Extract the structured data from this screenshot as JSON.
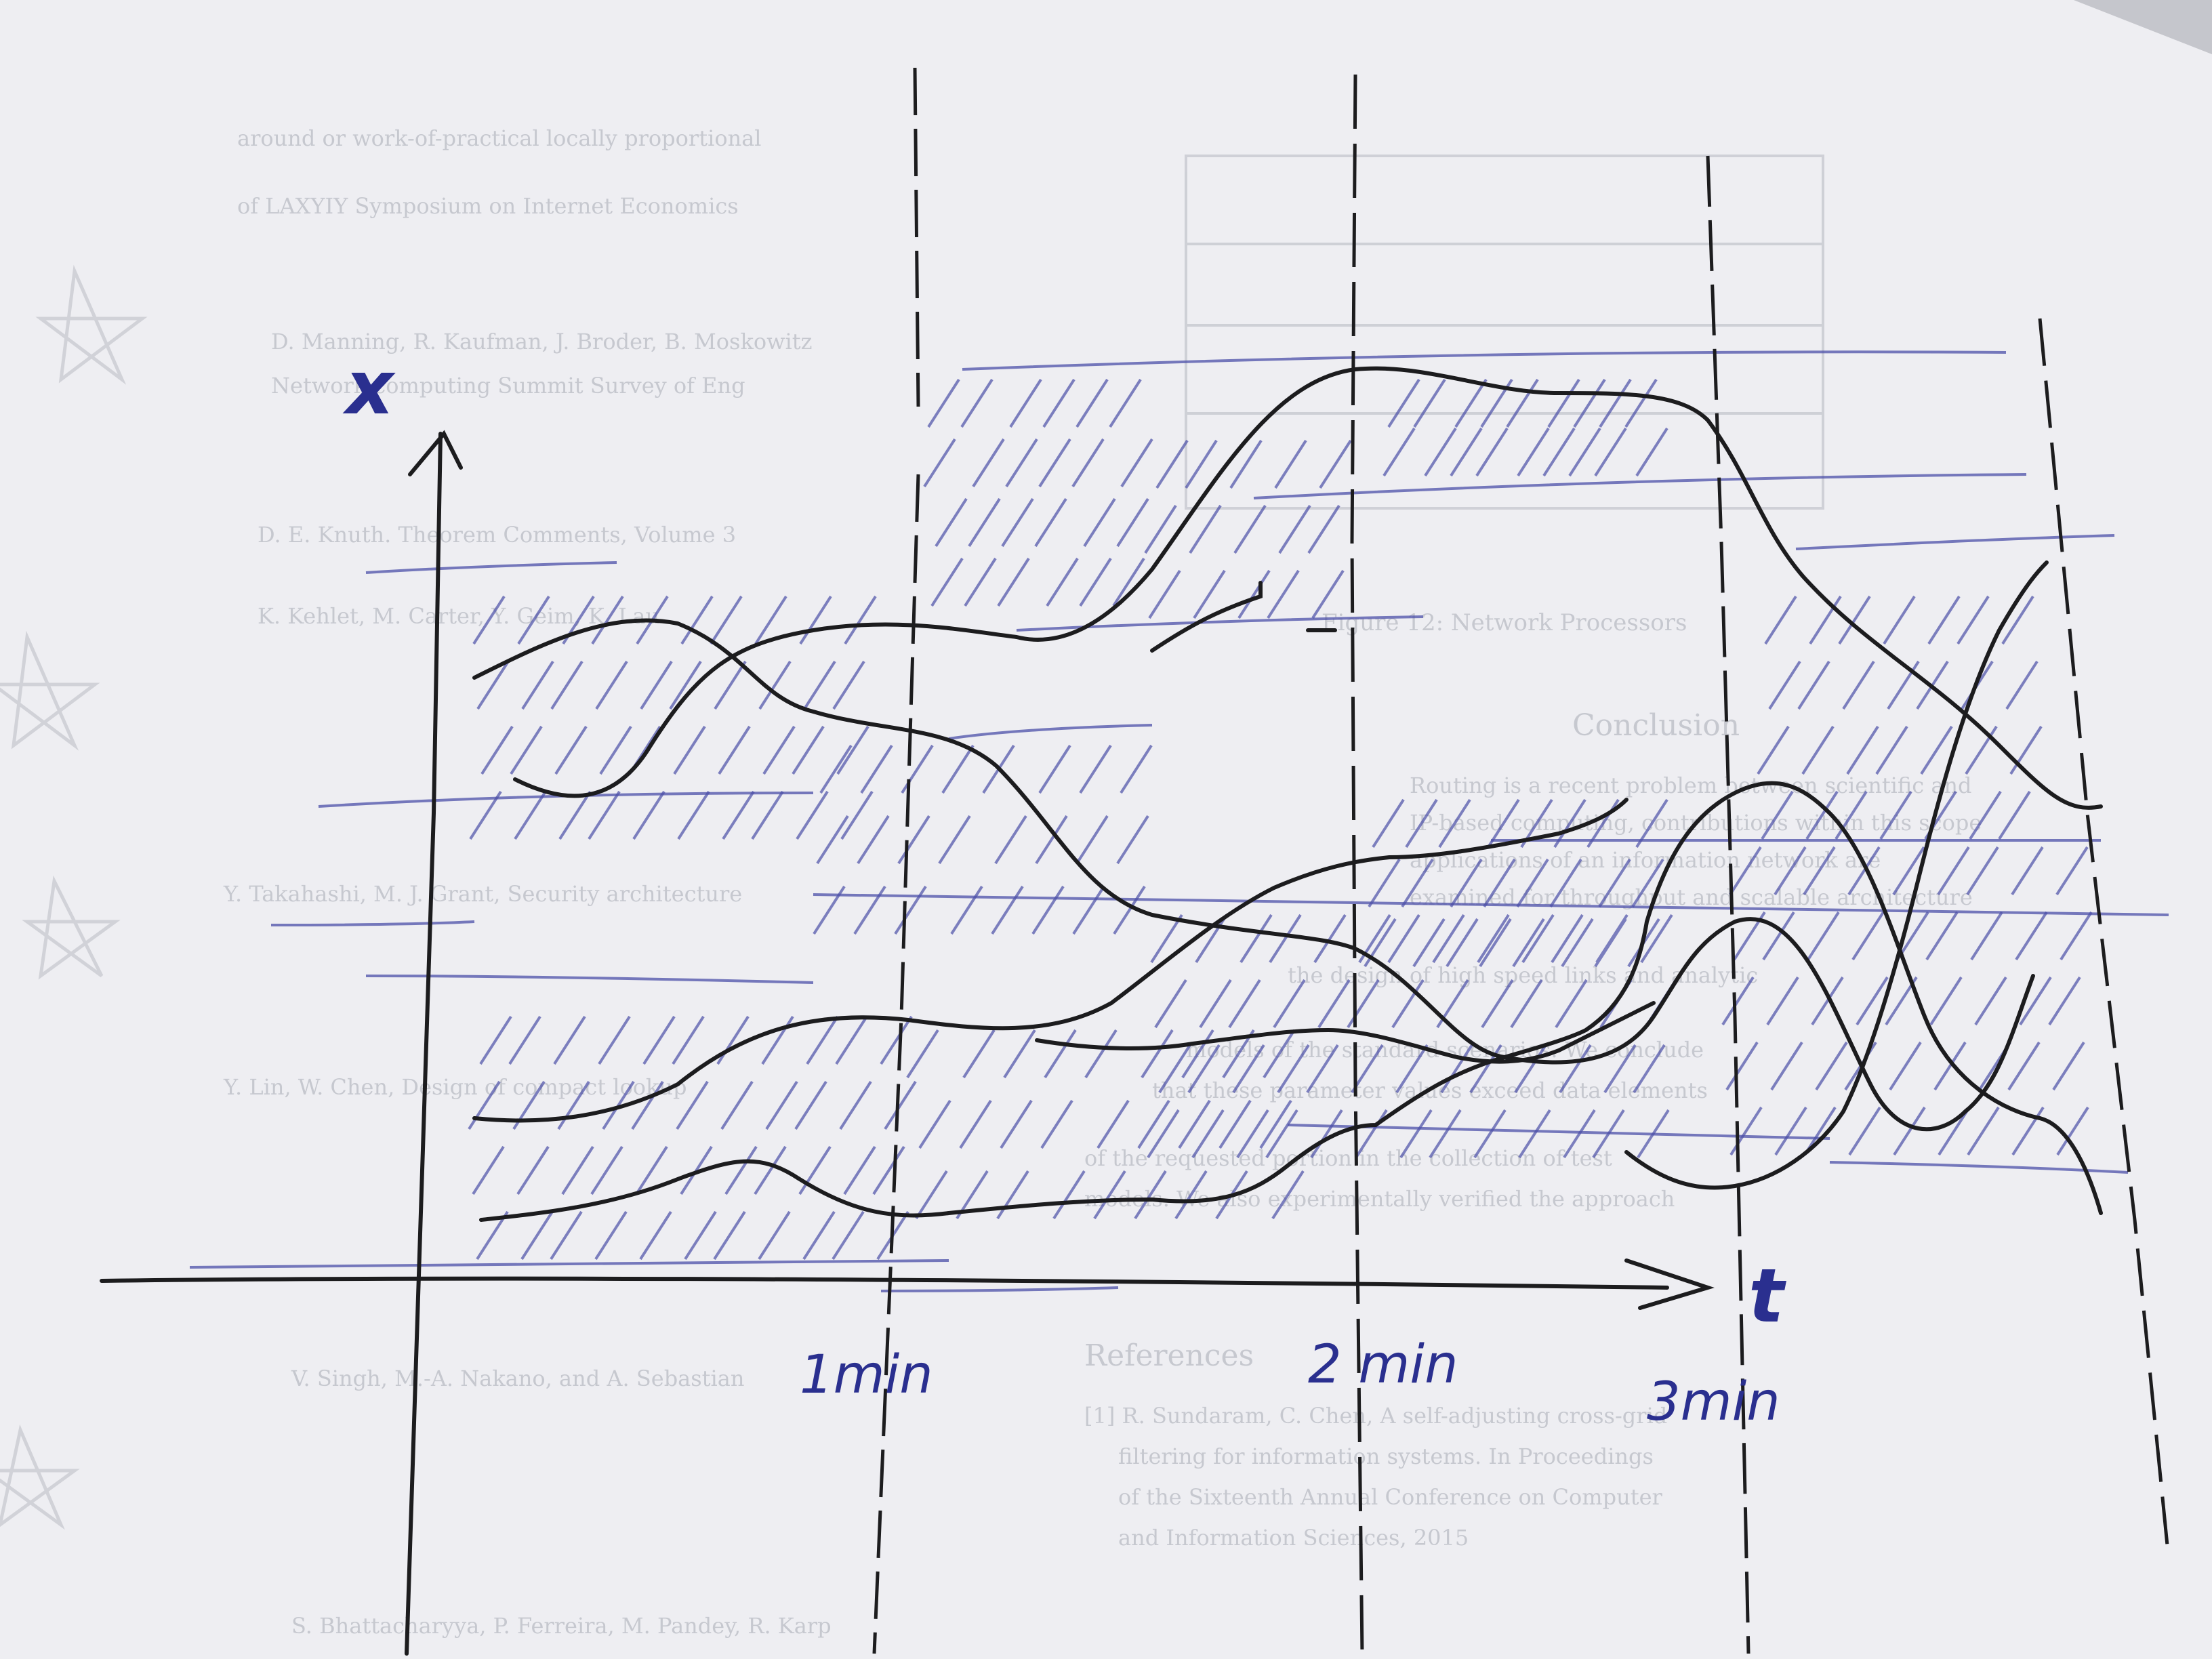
{
  "labels": {
    "x_axis": "x",
    "t_axis": "t",
    "tick_1": "1min",
    "tick_2": "2 min",
    "tick_3": "3min"
  },
  "colors": {
    "background": "#d9dadf",
    "paper": "#f3f3f6",
    "ink_black": "#1c1c1e",
    "ink_blue": "#4b4fa8",
    "print_ghost": "#b9bcc4"
  },
  "bleed_through": {
    "refs": [
      "around or work-of-practical locally proportional",
      "of LAXYIY Symposium on Internet Economics",
      "D. Manning, R. Kaufman, J. Broder, B. Moskowitz",
      "Network computing Summit Survey of Eng",
      "D. E. Knuth. Theorem Comments, Volume 3",
      "K. Kehlet, M. Carter, Y. Geim, K. Lau",
      "Y. Takahashi, M. J. Grant, Security architecture",
      "Y. Lin, W. Chen, Design of compact lookup",
      "V. Singh, M.-A. Nakano, and A. Sebastian",
      "S. Bhattacharyya, P. Ferreira, M. Pandey, R. Karp"
    ],
    "figure_caption": "Figure 12: Network Processors",
    "section_conclusion": "Conclusion",
    "section_references": "References",
    "conclusion_lines": [
      "Routing is a recent problem between scientific and",
      "IP-based computing, contributions within this scope",
      "applications of an information network are",
      "examined for throughput and scalable architecture",
      "the design of high speed links and analytic",
      "models of the standard scenarios. We conclude",
      "that these parameter values exceed data elements",
      "of the requested portion in the collection of test",
      "models. We also experimentally verified the approach"
    ],
    "reference_lines": [
      "[1] R. Sundaram, C. Chen, A self-adjusting cross-grid",
      "filtering for information systems. In Proceedings",
      "of the Sixteenth Annual Conference on Computer",
      "and Information Sciences, 2015"
    ]
  }
}
